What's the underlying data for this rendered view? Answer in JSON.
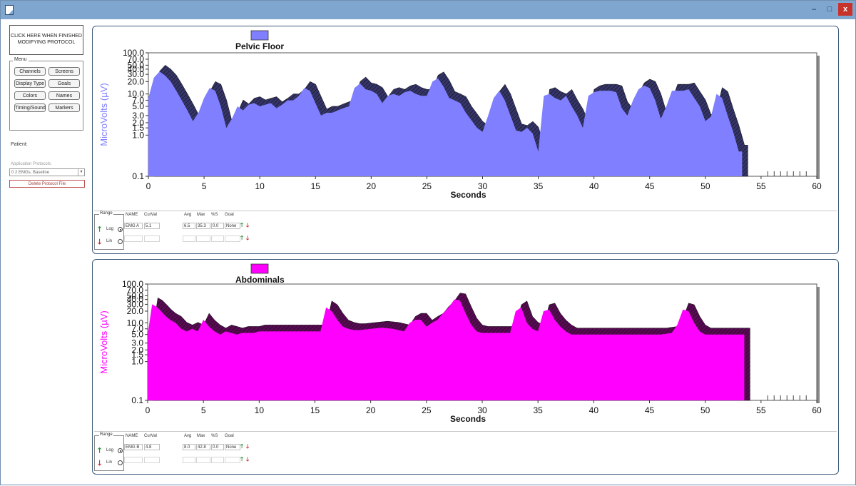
{
  "window": {
    "controls": {
      "minimize": "–",
      "maximize": "□",
      "close": "x"
    }
  },
  "sidebar": {
    "finish_button": "CLICK HERE WHEN FINISHED MODIFYING PROTOCOL",
    "menu_title": "Menu",
    "menu_buttons": [
      "Channels",
      "Screens",
      "Display Type",
      "Goals",
      "Colors",
      "Names",
      "Timing/Sound",
      "Markers"
    ],
    "patient_label": "Patient:",
    "patient_value": "",
    "protocol_label": "Application Protocols:",
    "protocol_value": "0 2 EMGs, Baseline",
    "delete_button": "Delete Protocol File"
  },
  "panels": [
    {
      "legend_color": "#7f7fff",
      "controls": {
        "range_title": "Range",
        "log_label": "Log",
        "lin_label": "Lin",
        "headers": {
          "name": "NAME",
          "curval": "CurVal",
          "avg": "Avg",
          "max": "Max",
          "pct": "%S",
          "goal": "Goal"
        },
        "values": {
          "name": "EMG A",
          "curval": "5.1",
          "avg": "6.5",
          "max": "35.3",
          "pct": "0.0",
          "goal": "None"
        }
      }
    },
    {
      "legend_color": "#ff00ff",
      "controls": {
        "range_title": "Range",
        "log_label": "Log",
        "lin_label": "Lin",
        "headers": {
          "name": "NAME",
          "curval": "CurVal",
          "avg": "Avg",
          "max": "Max",
          "pct": "%S",
          "goal": "Goal"
        },
        "values": {
          "name": "EMG B",
          "curval": "4.8",
          "avg": "8.0",
          "max": "42.8",
          "pct": "0.0",
          "goal": "None"
        }
      }
    }
  ],
  "chart_data": [
    {
      "type": "area",
      "title": "Pelvic Floor",
      "xlabel": "Seconds",
      "ylabel": "MicroVolts (µV)",
      "y_scale": "log",
      "xlim": [
        0,
        60
      ],
      "ylim": [
        0.1,
        100
      ],
      "x_ticks": [
        0,
        5,
        10,
        15,
        20,
        25,
        30,
        35,
        40,
        45,
        50,
        55,
        60
      ],
      "y_ticks": [
        "100.0",
        "70.0",
        "50.0",
        "40.0",
        "30.0",
        "20.0",
        "10.0",
        "7.0",
        "5.0",
        "3.0",
        "2.0",
        "1.5",
        "1.0",
        "0.1"
      ],
      "y_tick_values": [
        100,
        70,
        50,
        40,
        30,
        20,
        10,
        7,
        5,
        3,
        2,
        1.5,
        1,
        0.1
      ],
      "fill_color": "#7f7fff",
      "shadow_color": "#35356a",
      "series": [
        {
          "x": [
            0,
            0.5,
            1,
            1.5,
            2,
            2.5,
            3,
            3.5,
            4,
            4.5,
            5,
            5.5,
            6,
            6.5,
            7,
            7.5,
            8,
            8.5,
            9,
            9.5,
            10,
            10.5,
            11,
            11.5,
            12,
            12.5,
            13,
            13.5,
            14,
            14.5,
            15,
            15.5,
            16,
            16.5,
            17,
            17.5,
            18,
            18.5,
            19,
            19.5,
            20,
            20.5,
            21,
            21.5,
            22,
            22.5,
            23,
            23.5,
            24,
            24.5,
            25,
            25.5,
            26,
            26.5,
            27,
            27.5,
            28,
            28.5,
            29,
            29.5,
            30,
            30.5,
            31,
            31.5,
            32,
            32.5,
            33,
            33.5,
            34,
            34.5,
            35,
            35.5,
            36,
            36.5,
            37,
            37.5,
            38,
            38.5,
            39,
            39.5,
            40,
            40.5,
            41,
            41.5,
            42,
            42.5,
            43,
            43.5,
            44,
            44.5,
            45,
            45.5,
            46,
            46.5,
            47,
            47.5,
            48,
            48.5,
            49,
            49.5,
            50,
            50.5,
            51,
            51.5,
            52,
            52.5,
            53,
            53.3
          ],
          "y": [
            8,
            25,
            35,
            28,
            20,
            12,
            7,
            4,
            2.2,
            3.5,
            8,
            14,
            12,
            5,
            1.5,
            2.5,
            5,
            4,
            5.5,
            6,
            5,
            5.5,
            6,
            4.5,
            5.5,
            7,
            7,
            9,
            14,
            12,
            6,
            3,
            3.5,
            3.5,
            4,
            4.5,
            5,
            14,
            18,
            13,
            12,
            10,
            6,
            9,
            10,
            9,
            11,
            12,
            10,
            9,
            9,
            20,
            24,
            15,
            8,
            7,
            6,
            3.5,
            2.3,
            1.5,
            1.2,
            3,
            8,
            12,
            7,
            3,
            1.3,
            1.2,
            1.5,
            1.1,
            0.4,
            9,
            10,
            8,
            7,
            9,
            5,
            3,
            1.5,
            9,
            11,
            12,
            12,
            12,
            11,
            4.5,
            3,
            7,
            13,
            16,
            14,
            7,
            2.5,
            5,
            12,
            12,
            12,
            13,
            8,
            5,
            2.2,
            2.8,
            10,
            8,
            3,
            1.2,
            0.4,
            0.4
          ]
        }
      ]
    },
    {
      "type": "area",
      "title": "Abdominals",
      "xlabel": "Seconds",
      "ylabel": "MicroVolts (µV)",
      "y_scale": "log",
      "xlim": [
        0,
        60
      ],
      "ylim": [
        0.1,
        100
      ],
      "x_ticks": [
        0,
        5,
        10,
        15,
        20,
        25,
        30,
        35,
        40,
        45,
        50,
        55,
        60
      ],
      "y_ticks": [
        "100.0",
        "70.0",
        "50.0",
        "40.0",
        "30.0",
        "20.0",
        "10.0",
        "7.0",
        "5.0",
        "3.0",
        "2.0",
        "1.5",
        "1.0",
        "0.1"
      ],
      "y_tick_values": [
        100,
        70,
        50,
        40,
        30,
        20,
        10,
        7,
        5,
        3,
        2,
        1.5,
        1,
        0.1
      ],
      "fill_color": "#ff00ff",
      "shadow_color": "#5a0a55",
      "series": [
        {
          "x": [
            0,
            0.4,
            0.8,
            1.2,
            1.6,
            2,
            2.5,
            3,
            3.5,
            4,
            4.5,
            5,
            5.5,
            6,
            6.5,
            7,
            7.5,
            8,
            8.5,
            9,
            9.5,
            10,
            11,
            12,
            13,
            14,
            15,
            15.5,
            16,
            16.5,
            17,
            17.5,
            18,
            18.5,
            19,
            20,
            21,
            22,
            23,
            23.5,
            24,
            24.5,
            25,
            25.5,
            26,
            26.5,
            27,
            27.5,
            28,
            28.5,
            29,
            29.5,
            30,
            30.5,
            31,
            31.5,
            32,
            32.5,
            33,
            33.5,
            34,
            34.5,
            35,
            35.5,
            36,
            36.5,
            37,
            37.5,
            38,
            38.5,
            39,
            40,
            41,
            42,
            43,
            44,
            45,
            46,
            47,
            47.5,
            48,
            48.5,
            49,
            49.5,
            50,
            51,
            52,
            53,
            53.5
          ],
          "y": [
            5,
            30,
            26,
            20,
            15,
            12,
            10,
            7,
            6,
            7,
            6,
            12,
            8,
            6,
            5,
            6,
            5.5,
            5,
            5.5,
            5.5,
            5.5,
            6,
            6,
            6,
            6,
            6,
            6,
            6,
            25,
            20,
            12,
            8,
            7,
            6.5,
            6.5,
            7,
            7.5,
            7,
            6,
            10,
            12,
            12,
            8,
            10,
            12,
            18,
            25,
            40,
            38,
            18,
            9,
            6,
            5.5,
            5.5,
            5.5,
            5.5,
            5.5,
            5.5,
            20,
            25,
            10,
            7,
            6,
            20,
            22,
            12,
            8,
            6,
            5,
            5,
            5,
            5,
            5,
            5,
            5,
            5,
            5,
            5,
            5.5,
            9,
            22,
            20,
            10,
            6,
            5,
            5,
            5,
            5,
            5
          ]
        }
      ]
    }
  ]
}
